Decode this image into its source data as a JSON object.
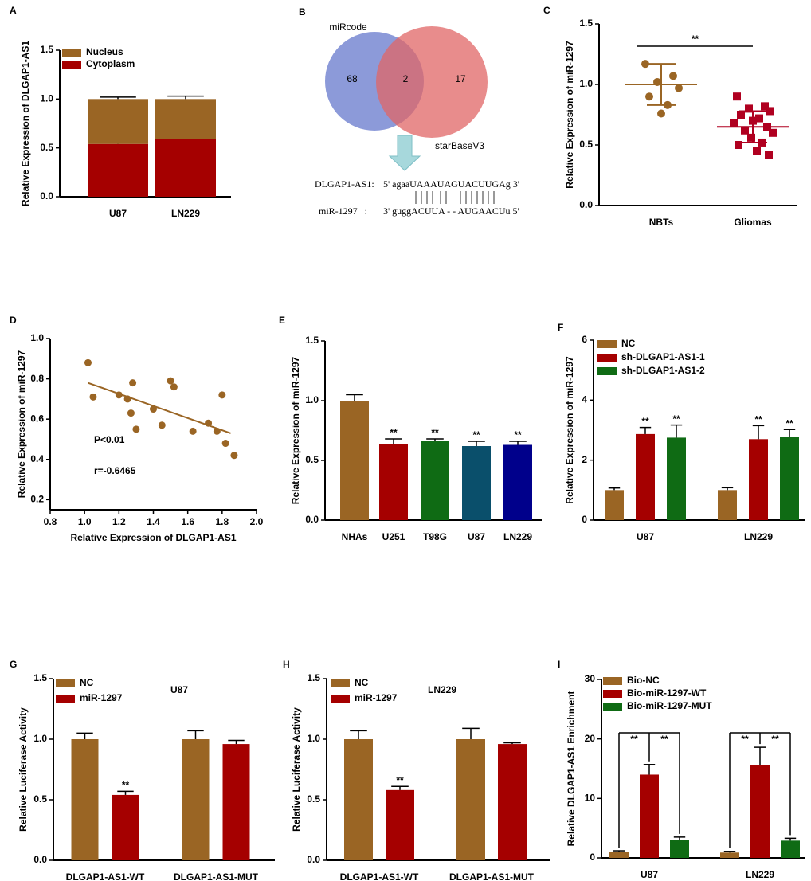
{
  "chart_data": [
    {
      "type": "stacked_bar",
      "label": "A",
      "ylabel": "Relative Expression of DLGAP1-AS1",
      "categories": [
        "U87",
        "LN229"
      ],
      "series": [
        {
          "name": "Nucleus",
          "color": "#9a6524",
          "values": [
            0.46,
            0.41
          ],
          "errors": [
            0.02,
            0.03
          ]
        },
        {
          "name": "Cytoplasm",
          "color": "#a50000",
          "values": [
            0.54,
            0.59
          ],
          "errors": [
            0.02,
            0.03
          ]
        }
      ],
      "ylim": [
        0,
        1.5
      ],
      "yticks": [
        {
          "value": 0,
          "label": "0.0"
        },
        0.5,
        {
          "value": 1,
          "label": "1.0"
        },
        1.5
      ]
    },
    {
      "type": "venn",
      "label": "B",
      "sets": [
        {
          "name": "miRcode",
          "count": 68,
          "color": "#6678cc"
        },
        {
          "name": "starBaseV3",
          "count": 17,
          "color": "#e06666"
        }
      ],
      "overlap": 2,
      "alignment": [
        {
          "name": "DLGAP1-AS1:",
          "sequence": "5' agaaUAAAUAGUACUUGAg 3'"
        },
        {
          "name": "miR-1297   :",
          "sequence": "3' guggACUUA - - AUGAACUu 5'"
        }
      ]
    },
    {
      "type": "dot_plot",
      "label": "C",
      "ylabel": "Relative Expression of miR-1297",
      "categories": [
        "NBTs",
        "Gliomas"
      ],
      "colors": [
        "#9a6524",
        "#b00020"
      ],
      "markers": [
        "circle",
        "square"
      ],
      "points": [
        [
          1.17,
          1.07,
          1.02,
          0.97,
          0.9,
          0.83,
          0.76
        ],
        [
          0.9,
          0.82,
          0.8,
          0.78,
          0.75,
          0.72,
          0.7,
          0.68,
          0.65,
          0.62,
          0.6,
          0.56,
          0.52,
          0.5,
          0.45,
          0.42
        ]
      ],
      "means": [
        1.0,
        0.65
      ],
      "sds": [
        0.17,
        0.13
      ],
      "annotation": "**",
      "ylim": [
        0,
        1.5
      ],
      "yticks": [
        {
          "value": 0,
          "label": "0.0"
        },
        0.5,
        {
          "value": 1,
          "label": "1.0"
        },
        1.5
      ]
    },
    {
      "type": "scatter",
      "label": "D",
      "xlabel": "Relative Expression of DLGAP1-AS1",
      "ylabel": "Relative Expression of miR-1297",
      "color": "#9a6524",
      "x": [
        1.02,
        1.05,
        1.2,
        1.25,
        1.27,
        1.28,
        1.3,
        1.4,
        1.45,
        1.5,
        1.52,
        1.63,
        1.72,
        1.77,
        1.8,
        1.82,
        1.87
      ],
      "y": [
        0.88,
        0.71,
        0.72,
        0.7,
        0.63,
        0.78,
        0.55,
        0.65,
        0.57,
        0.79,
        0.76,
        0.54,
        0.58,
        0.54,
        0.72,
        0.48,
        0.42
      ],
      "fit": {
        "x": [
          1.02,
          1.85
        ],
        "y": [
          0.78,
          0.53
        ]
      },
      "annotations": [
        "P<0.01",
        "r=-0.6465"
      ],
      "xlim": [
        0.8,
        2.0
      ],
      "xticks": [
        0.8,
        {
          "value": 1,
          "label": "1.0"
        },
        1.2,
        1.4,
        1.6,
        1.8,
        {
          "value": 2,
          "label": "2.0"
        }
      ],
      "ylim": [
        0.15,
        1.0
      ],
      "yticks": [
        0.2,
        0.4,
        0.6,
        0.8,
        {
          "value": 1,
          "label": "1.0"
        }
      ]
    },
    {
      "type": "bar",
      "label": "E",
      "ylabel": "Relative Expression of miR-1297",
      "categories": [
        "NHAs",
        "U251",
        "T98G",
        "U87",
        "LN229"
      ],
      "values": [
        1.0,
        0.64,
        0.66,
        0.62,
        0.63
      ],
      "errors": [
        0.05,
        0.04,
        0.02,
        0.04,
        0.03
      ],
      "colors": [
        "#9a6524",
        "#a50000",
        "#0f6b14",
        "#0a4f6b",
        "#00008b"
      ],
      "value_annotations": [
        null,
        "**",
        "**",
        "**",
        "**"
      ],
      "ylim": [
        0,
        1.5
      ],
      "yticks": [
        {
          "value": 0,
          "label": "0.0"
        },
        0.5,
        {
          "value": 1,
          "label": "1.0"
        },
        1.5
      ]
    },
    {
      "type": "grouped_bar",
      "label": "F",
      "ylabel": "Relative Expression of miR-1297",
      "categories": [
        "U87",
        "LN229"
      ],
      "series": [
        {
          "name": "NC",
          "color": "#9a6524",
          "values": [
            1.0,
            1.0
          ],
          "errors": [
            0.07,
            0.08
          ]
        },
        {
          "name": "sh-DLGAP1-AS1-1",
          "color": "#a50000",
          "values": [
            2.87,
            2.7
          ],
          "errors": [
            0.22,
            0.45
          ],
          "annotations": [
            "**",
            "**"
          ]
        },
        {
          "name": "sh-DLGAP1-AS1-2",
          "color": "#0f6b14",
          "values": [
            2.75,
            2.77
          ],
          "errors": [
            0.42,
            0.25
          ],
          "annotations": [
            "**",
            "**"
          ]
        }
      ],
      "ylim": [
        0,
        6
      ],
      "yticks": [
        0,
        2,
        4,
        6
      ]
    },
    {
      "type": "grouped_bar",
      "label": "G",
      "title": "U87",
      "ylabel": "Relative Luciferase Activity",
      "categories": [
        "DLGAP1-AS1-WT",
        "DLGAP1-AS1-MUT"
      ],
      "series": [
        {
          "name": "NC",
          "color": "#9a6524",
          "values": [
            1.0,
            1.0
          ],
          "errors": [
            0.05,
            0.07
          ]
        },
        {
          "name": "miR-1297",
          "color": "#a50000",
          "values": [
            0.54,
            0.96
          ],
          "errors": [
            0.03,
            0.03
          ],
          "annotations": [
            "**",
            null
          ]
        }
      ],
      "ylim": [
        0,
        1.5
      ],
      "yticks": [
        {
          "value": 0,
          "label": "0.0"
        },
        0.5,
        {
          "value": 1,
          "label": "1.0"
        },
        1.5
      ]
    },
    {
      "type": "grouped_bar",
      "label": "H",
      "title": "LN229",
      "ylabel": "Relative Luciferase Activity",
      "categories": [
        "DLGAP1-AS1-WT",
        "DLGAP1-AS1-MUT"
      ],
      "series": [
        {
          "name": "NC",
          "color": "#9a6524",
          "values": [
            1.0,
            1.0
          ],
          "errors": [
            0.07,
            0.09
          ]
        },
        {
          "name": "miR-1297",
          "color": "#a50000",
          "values": [
            0.58,
            0.96
          ],
          "errors": [
            0.03,
            0.01
          ],
          "annotations": [
            "**",
            null
          ]
        }
      ],
      "ylim": [
        0,
        1.5
      ],
      "yticks": [
        {
          "value": 0,
          "label": "0.0"
        },
        0.5,
        {
          "value": 1,
          "label": "1.0"
        },
        1.5
      ]
    },
    {
      "type": "grouped_bar",
      "label": "I",
      "ylabel": "Relative DLGAP1-AS1 Enrichment",
      "categories": [
        "U87",
        "LN229"
      ],
      "series": [
        {
          "name": "Bio-NC",
          "color": "#9a6524",
          "values": [
            1.0,
            0.9
          ],
          "errors": [
            0.2,
            0.2
          ]
        },
        {
          "name": "Bio-miR-1297-WT",
          "color": "#a50000",
          "values": [
            14,
            15.6
          ],
          "errors": [
            1.7,
            3.0
          ]
        },
        {
          "name": "Bio-miR-1297-MUT",
          "color": "#0f6b14",
          "values": [
            3,
            2.9
          ],
          "errors": [
            0.5,
            0.4
          ]
        }
      ],
      "comparison_labels": [
        [
          "**",
          "**"
        ],
        [
          "**",
          "**"
        ]
      ],
      "ylim": [
        0,
        30
      ],
      "yticks": [
        0,
        10,
        20,
        30
      ]
    }
  ]
}
